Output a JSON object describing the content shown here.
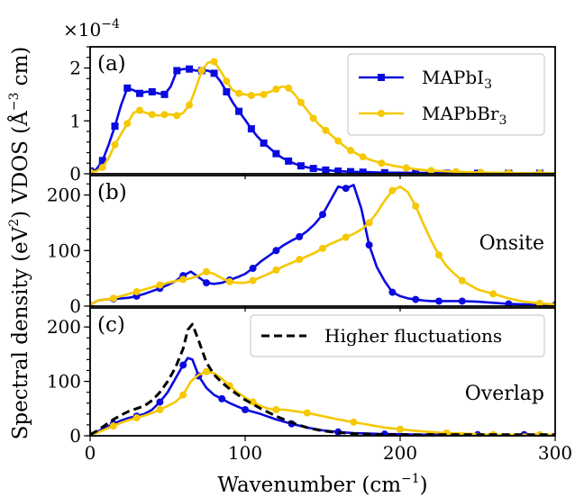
{
  "chart_data": [
    {
      "id": "a",
      "type": "line",
      "panel_label": "(a)",
      "ylabel_line1": "VDOS (Å",
      "ylabel_sup": "−3",
      "ylabel_line2": " cm)",
      "shared_ylabel": "Spectral density (eV",
      "shared_ylabel_sup": "2",
      "shared_ylabel_end": ")",
      "offset_text": "×10",
      "offset_exp": "−4",
      "xlim": [
        0,
        300
      ],
      "ylim": [
        0,
        2.4
      ],
      "yticks": [
        0,
        1,
        2
      ],
      "ytick_labels": [
        "0",
        "1",
        "2"
      ],
      "legend": {
        "placement": "top-right",
        "entries": [
          {
            "series": 0,
            "base": "MAPbI",
            "sub": "3"
          },
          {
            "series": 1,
            "base": "MAPbBr",
            "sub": "3"
          }
        ]
      },
      "series": [
        {
          "name": "MAPbI3",
          "color": "#0a0ae0",
          "marker": "square",
          "x": [
            0,
            4,
            8,
            12,
            16,
            20,
            24,
            28,
            32,
            36,
            40,
            44,
            48,
            52,
            56,
            60,
            64,
            68,
            72,
            76,
            80,
            84,
            88,
            92,
            96,
            100,
            104,
            108,
            112,
            116,
            120,
            124,
            128,
            132,
            136,
            140,
            144,
            148,
            152,
            156,
            160,
            164,
            168,
            172,
            176,
            180,
            190,
            200,
            210,
            220,
            230,
            240,
            250,
            260,
            270,
            280,
            290,
            300
          ],
          "y": [
            0.05,
            0.08,
            0.25,
            0.55,
            0.9,
            1.3,
            1.62,
            1.58,
            1.52,
            1.55,
            1.55,
            1.52,
            1.5,
            1.65,
            1.95,
            1.98,
            1.98,
            1.95,
            1.95,
            1.95,
            1.9,
            1.75,
            1.55,
            1.35,
            1.18,
            1.02,
            0.85,
            0.7,
            0.58,
            0.48,
            0.38,
            0.3,
            0.24,
            0.19,
            0.15,
            0.12,
            0.1,
            0.08,
            0.07,
            0.06,
            0.05,
            0.045,
            0.04,
            0.035,
            0.03,
            0.03,
            0.02,
            0.02,
            0.015,
            0.015,
            0.01,
            0.01,
            0.01,
            0.01,
            0.01,
            0.01,
            0.01,
            0.01
          ],
          "marker_every": 2
        },
        {
          "name": "MAPbBr3",
          "color": "#f5c800",
          "marker": "circle",
          "x": [
            0,
            4,
            8,
            12,
            16,
            20,
            24,
            28,
            32,
            36,
            40,
            44,
            48,
            52,
            56,
            60,
            64,
            68,
            72,
            76,
            80,
            84,
            88,
            92,
            96,
            100,
            104,
            108,
            112,
            116,
            120,
            124,
            128,
            132,
            136,
            140,
            144,
            148,
            152,
            156,
            160,
            164,
            168,
            172,
            176,
            180,
            188,
            196,
            204,
            212,
            220,
            228,
            236,
            244,
            252,
            260,
            270,
            280,
            290,
            300
          ],
          "y": [
            0.03,
            0.05,
            0.12,
            0.3,
            0.55,
            0.75,
            0.95,
            1.15,
            1.2,
            1.15,
            1.12,
            1.1,
            1.12,
            1.12,
            1.1,
            1.15,
            1.3,
            1.6,
            1.95,
            2.1,
            2.12,
            1.95,
            1.75,
            1.58,
            1.52,
            1.5,
            1.48,
            1.5,
            1.5,
            1.55,
            1.6,
            1.65,
            1.62,
            1.5,
            1.35,
            1.2,
            1.05,
            0.92,
            0.82,
            0.72,
            0.62,
            0.52,
            0.44,
            0.38,
            0.32,
            0.27,
            0.2,
            0.15,
            0.11,
            0.08,
            0.06,
            0.05,
            0.04,
            0.03,
            0.025,
            0.02,
            0.015,
            0.01,
            0.01,
            0.01
          ],
          "marker_every": 2
        }
      ]
    },
    {
      "id": "b",
      "type": "line",
      "panel_label": "(b)",
      "annotation": "Onsite",
      "xlim": [
        0,
        300
      ],
      "ylim": [
        0,
        235
      ],
      "yticks": [
        0,
        100,
        200
      ],
      "ytick_labels": [
        "0",
        "100",
        "200"
      ],
      "series": [
        {
          "name": "MAPbI3",
          "color": "#0a0ae0",
          "marker": "circle",
          "x": [
            0,
            5,
            10,
            15,
            20,
            25,
            30,
            35,
            40,
            45,
            50,
            55,
            60,
            65,
            70,
            75,
            80,
            85,
            90,
            95,
            100,
            105,
            110,
            115,
            120,
            125,
            130,
            135,
            140,
            145,
            150,
            155,
            160,
            165,
            170,
            175,
            180,
            185,
            190,
            195,
            200,
            205,
            210,
            215,
            220,
            225,
            230,
            235,
            240,
            250,
            260,
            270,
            280,
            290,
            300
          ],
          "y": [
            2,
            10,
            12,
            13,
            14,
            15,
            18,
            22,
            27,
            32,
            38,
            45,
            55,
            62,
            52,
            42,
            40,
            42,
            47,
            52,
            58,
            68,
            80,
            90,
            100,
            110,
            118,
            125,
            135,
            148,
            165,
            190,
            215,
            212,
            218,
            175,
            110,
            70,
            45,
            25,
            18,
            14,
            12,
            10,
            9,
            9,
            9,
            9,
            9,
            8,
            6,
            4,
            3,
            2,
            2
          ],
          "marker_every": 3
        },
        {
          "name": "MAPbBr3",
          "color": "#f5c800",
          "marker": "circle",
          "x": [
            0,
            5,
            10,
            15,
            20,
            25,
            30,
            35,
            40,
            45,
            50,
            55,
            60,
            65,
            70,
            75,
            80,
            85,
            90,
            95,
            100,
            105,
            110,
            115,
            120,
            125,
            130,
            135,
            140,
            145,
            150,
            155,
            160,
            165,
            170,
            175,
            180,
            185,
            190,
            195,
            200,
            205,
            210,
            215,
            220,
            225,
            230,
            235,
            240,
            245,
            250,
            260,
            270,
            280,
            290,
            300
          ],
          "y": [
            2,
            10,
            12,
            14,
            18,
            22,
            26,
            30,
            34,
            38,
            42,
            45,
            48,
            50,
            55,
            62,
            58,
            50,
            44,
            42,
            42,
            46,
            52,
            58,
            65,
            72,
            78,
            84,
            90,
            96,
            104,
            112,
            118,
            124,
            130,
            138,
            150,
            168,
            190,
            208,
            215,
            205,
            180,
            148,
            118,
            92,
            72,
            58,
            46,
            38,
            30,
            22,
            14,
            8,
            5,
            3
          ],
          "marker_every": 3
        }
      ]
    },
    {
      "id": "c",
      "type": "line",
      "panel_label": "(c)",
      "annotation": "Overlap",
      "xlim": [
        0,
        300
      ],
      "ylim": [
        0,
        235
      ],
      "yticks": [
        0,
        100,
        200
      ],
      "ytick_labels": [
        "0",
        "100",
        "200"
      ],
      "xticks": [
        0,
        100,
        200,
        300
      ],
      "xtick_labels": [
        "0",
        "100",
        "200",
        "300"
      ],
      "xlabel": "Wavenumber (cm",
      "xlabel_sup": "−1",
      "xlabel_end": ")",
      "legend": {
        "placement": "top-right",
        "entries": [
          {
            "series": 2,
            "text": "Higher fluctuations"
          }
        ]
      },
      "series": [
        {
          "name": "MAPbI3",
          "color": "#0a0ae0",
          "marker": "circle",
          "x": [
            0,
            5,
            10,
            15,
            20,
            25,
            30,
            35,
            40,
            45,
            50,
            55,
            60,
            63,
            66,
            70,
            75,
            80,
            85,
            90,
            95,
            100,
            110,
            120,
            130,
            140,
            150,
            160,
            170,
            180,
            190,
            200,
            210,
            220,
            230,
            240,
            250,
            260,
            270,
            280,
            290,
            300
          ],
          "y": [
            2,
            8,
            15,
            22,
            28,
            33,
            36,
            40,
            48,
            62,
            80,
            105,
            130,
            143,
            140,
            110,
            88,
            75,
            68,
            60,
            54,
            48,
            40,
            30,
            22,
            15,
            10,
            7,
            5,
            4,
            3,
            3,
            2,
            2,
            2,
            2,
            2,
            2,
            2,
            2,
            2,
            2
          ],
          "marker_every": 3
        },
        {
          "name": "MAPbBr3",
          "color": "#f5c800",
          "marker": "circle",
          "x": [
            0,
            5,
            10,
            15,
            20,
            25,
            30,
            35,
            40,
            45,
            50,
            55,
            60,
            65,
            70,
            75,
            80,
            85,
            90,
            95,
            100,
            105,
            110,
            115,
            120,
            125,
            130,
            140,
            150,
            160,
            170,
            180,
            190,
            200,
            210,
            220,
            230,
            240,
            250,
            260,
            270,
            280,
            290,
            300
          ],
          "y": [
            2,
            6,
            12,
            18,
            24,
            29,
            33,
            37,
            42,
            48,
            55,
            62,
            75,
            100,
            112,
            118,
            115,
            105,
            92,
            80,
            70,
            62,
            55,
            50,
            48,
            48,
            46,
            42,
            36,
            30,
            25,
            20,
            15,
            12,
            9,
            7,
            5,
            4,
            3,
            2,
            2,
            2,
            2,
            2
          ],
          "marker_every": 3
        },
        {
          "name": "Higher fluctuations",
          "color": "#000000",
          "dashed": true,
          "x": [
            0,
            5,
            10,
            15,
            20,
            25,
            30,
            35,
            40,
            45,
            50,
            55,
            60,
            63,
            66,
            70,
            75,
            80,
            85,
            90,
            95,
            100,
            110,
            120,
            130,
            140,
            150,
            160,
            170,
            180,
            190,
            200,
            210,
            220,
            230,
            240,
            250,
            260,
            270,
            280,
            290,
            300
          ],
          "y": [
            2,
            10,
            20,
            30,
            38,
            45,
            50,
            55,
            65,
            80,
            100,
            125,
            160,
            195,
            205,
            175,
            135,
            112,
            98,
            86,
            76,
            66,
            50,
            36,
            24,
            15,
            9,
            6,
            4,
            3,
            2,
            2,
            2,
            2,
            2,
            2,
            2,
            2,
            2,
            2,
            2,
            2
          ]
        }
      ]
    }
  ]
}
